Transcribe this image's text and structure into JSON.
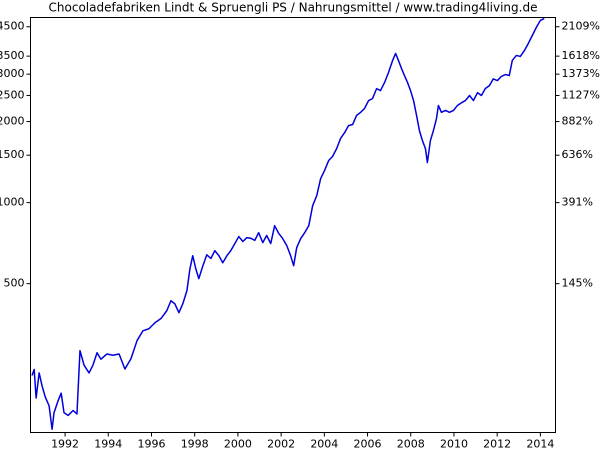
{
  "chart_data": {
    "type": "line",
    "title": "Chocoladefabriken Lindt & Spruengli PS / Nahrungsmittel / www.trading4living.de",
    "log_scale": true,
    "grid": false,
    "xlim": [
      1990.4,
      2014.7
    ],
    "xticks": [
      1992,
      1994,
      1996,
      1998,
      2000,
      2002,
      2004,
      2006,
      2008,
      2010,
      2012,
      2014
    ],
    "ylim": [
      140,
      4870
    ],
    "yticks": [
      500,
      1000,
      1500,
      2000,
      2500,
      3000,
      3500,
      4500
    ],
    "y2lim": [
      140,
      4870
    ],
    "y2ticks": [
      {
        "value": 4500,
        "label": "2109%"
      },
      {
        "value": 3500,
        "label": "1618%"
      },
      {
        "value": 3000,
        "label": "1373%"
      },
      {
        "value": 2500,
        "label": "1127%"
      },
      {
        "value": 2000,
        "label": "882%"
      },
      {
        "value": 1500,
        "label": "636%"
      },
      {
        "value": 1000,
        "label": "391%"
      },
      {
        "value": 500,
        "label": "145%"
      }
    ],
    "x": [
      1990.47,
      1990.57,
      1990.66,
      1990.8,
      1990.94,
      1991.08,
      1991.26,
      1991.4,
      1991.49,
      1991.68,
      1991.82,
      1991.95,
      1992.14,
      1992.37,
      1992.55,
      1992.69,
      1992.88,
      1993.11,
      1993.29,
      1993.48,
      1993.66,
      1993.94,
      1994.22,
      1994.5,
      1994.77,
      1995.05,
      1995.33,
      1995.6,
      1995.88,
      1996.16,
      1996.44,
      1996.71,
      1996.9,
      1997.08,
      1997.27,
      1997.45,
      1997.64,
      1997.78,
      1997.91,
      1998.05,
      1998.19,
      1998.38,
      1998.56,
      1998.75,
      1998.93,
      1999.12,
      1999.3,
      1999.49,
      1999.67,
      1999.86,
      2000.04,
      2000.23,
      2000.41,
      2000.6,
      2000.78,
      2000.96,
      2001.15,
      2001.33,
      2001.52,
      2001.7,
      2001.89,
      2002.07,
      2002.26,
      2002.44,
      2002.58,
      2002.72,
      2002.91,
      2003.09,
      2003.28,
      2003.46,
      2003.65,
      2003.83,
      2004.01,
      2004.2,
      2004.38,
      2004.57,
      2004.75,
      2004.94,
      2005.12,
      2005.31,
      2005.49,
      2005.68,
      2005.86,
      2006.05,
      2006.23,
      2006.42,
      2006.6,
      2006.79,
      2006.97,
      2007.16,
      2007.3,
      2007.43,
      2007.57,
      2007.71,
      2007.85,
      2007.99,
      2008.13,
      2008.27,
      2008.4,
      2008.54,
      2008.68,
      2008.77,
      2008.91,
      2009.05,
      2009.19,
      2009.28,
      2009.42,
      2009.61,
      2009.79,
      2009.98,
      2010.16,
      2010.35,
      2010.53,
      2010.72,
      2010.9,
      2011.09,
      2011.27,
      2011.45,
      2011.64,
      2011.82,
      2012.01,
      2012.19,
      2012.38,
      2012.56,
      2012.7,
      2012.89,
      2013.07,
      2013.26,
      2013.44,
      2013.63,
      2013.81,
      2014.0,
      2014.18
    ],
    "series": [
      {
        "color": "#0000dd",
        "values": [
          228,
          240,
          188,
          233,
          208,
          190,
          176,
          144,
          166,
          184,
          196,
          166,
          162,
          169,
          164,
          282,
          249,
          233,
          249,
          277,
          262,
          274,
          271,
          274,
          241,
          263,
          307,
          334,
          340,
          358,
          371,
          397,
          432,
          421,
          390,
          421,
          471,
          568,
          635,
          568,
          522,
          583,
          640,
          620,
          663,
          635,
          598,
          635,
          663,
          705,
          748,
          717,
          741,
          737,
          724,
          773,
          710,
          755,
          705,
          821,
          768,
          736,
          693,
          635,
          583,
          680,
          736,
          773,
          821,
          974,
          1062,
          1228,
          1315,
          1433,
          1483,
          1587,
          1729,
          1820,
          1932,
          1950,
          2106,
          2164,
          2236,
          2393,
          2433,
          2651,
          2607,
          2794,
          3043,
          3373,
          3580,
          3373,
          3151,
          2965,
          2794,
          2607,
          2393,
          2106,
          1853,
          1700,
          1587,
          1409,
          1700,
          1853,
          2050,
          2295,
          2164,
          2200,
          2164,
          2200,
          2295,
          2350,
          2393,
          2500,
          2393,
          2560,
          2500,
          2651,
          2720,
          2880,
          2840,
          2940,
          2990,
          2965,
          3373,
          3520,
          3490,
          3670,
          3900,
          4180,
          4470,
          4750,
          4830
        ]
      }
    ]
  }
}
